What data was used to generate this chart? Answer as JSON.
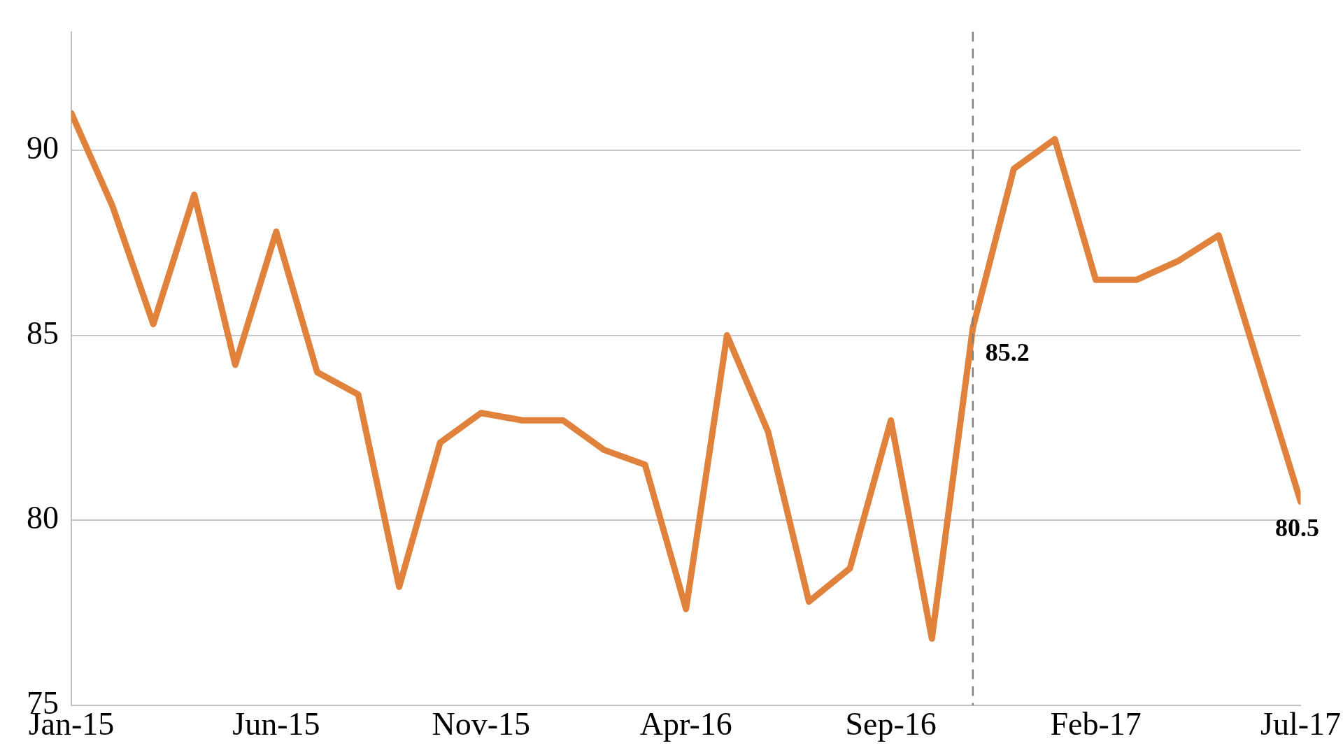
{
  "chart_data": {
    "type": "line",
    "x": [
      "2015-01",
      "2015-02",
      "2015-03",
      "2015-04",
      "2015-05",
      "2015-06",
      "2015-07",
      "2015-08",
      "2015-09",
      "2015-10",
      "2015-11",
      "2015-12",
      "2016-01",
      "2016-02",
      "2016-03",
      "2016-04",
      "2016-05",
      "2016-06",
      "2016-07",
      "2016-08",
      "2016-09",
      "2016-10",
      "2016-11",
      "2016-12",
      "2017-01",
      "2017-02",
      "2017-03",
      "2017-04",
      "2017-05",
      "2017-06",
      "2017-07"
    ],
    "series": [
      {
        "color": "#e0823c",
        "values": [
          91.0,
          88.5,
          85.3,
          88.8,
          84.2,
          87.8,
          84.0,
          83.4,
          78.2,
          82.1,
          82.9,
          82.7,
          82.7,
          81.9,
          81.5,
          77.6,
          85.0,
          82.4,
          77.8,
          78.7,
          82.7,
          76.8,
          85.2,
          89.5,
          90.3,
          86.5,
          86.5,
          87.0,
          87.7,
          84.1,
          80.5
        ],
        "value_labels": [
          null,
          null,
          null,
          null,
          null,
          null,
          null,
          null,
          null,
          null,
          null,
          null,
          null,
          null,
          null,
          null,
          null,
          null,
          null,
          null,
          null,
          null,
          "85.2",
          null,
          null,
          null,
          null,
          null,
          null,
          null,
          "80.5"
        ]
      }
    ],
    "xlim": [
      "2015-01",
      "2017-07"
    ],
    "xticks": [
      {
        "value": "2015-01",
        "label": "Jan-15"
      },
      {
        "value": "2015-06",
        "label": "Jun-15"
      },
      {
        "value": "2015-11",
        "label": "Nov-15"
      },
      {
        "value": "2016-04",
        "label": "Apr-16"
      },
      {
        "value": "2016-09",
        "label": "Sep-16"
      },
      {
        "value": "2017-02",
        "label": "Feb-17"
      },
      {
        "value": "2017-07",
        "label": "Jul-17"
      }
    ],
    "ylim": [
      75,
      93.2
    ],
    "yticks": [
      75,
      80,
      85,
      90
    ],
    "grid": "y",
    "legend": false,
    "marker": "none",
    "line_style": "solid",
    "ref_lines": [
      {
        "axis": "x",
        "value": "2016-11",
        "color": "#808080",
        "line_style": "dashed"
      }
    ]
  }
}
